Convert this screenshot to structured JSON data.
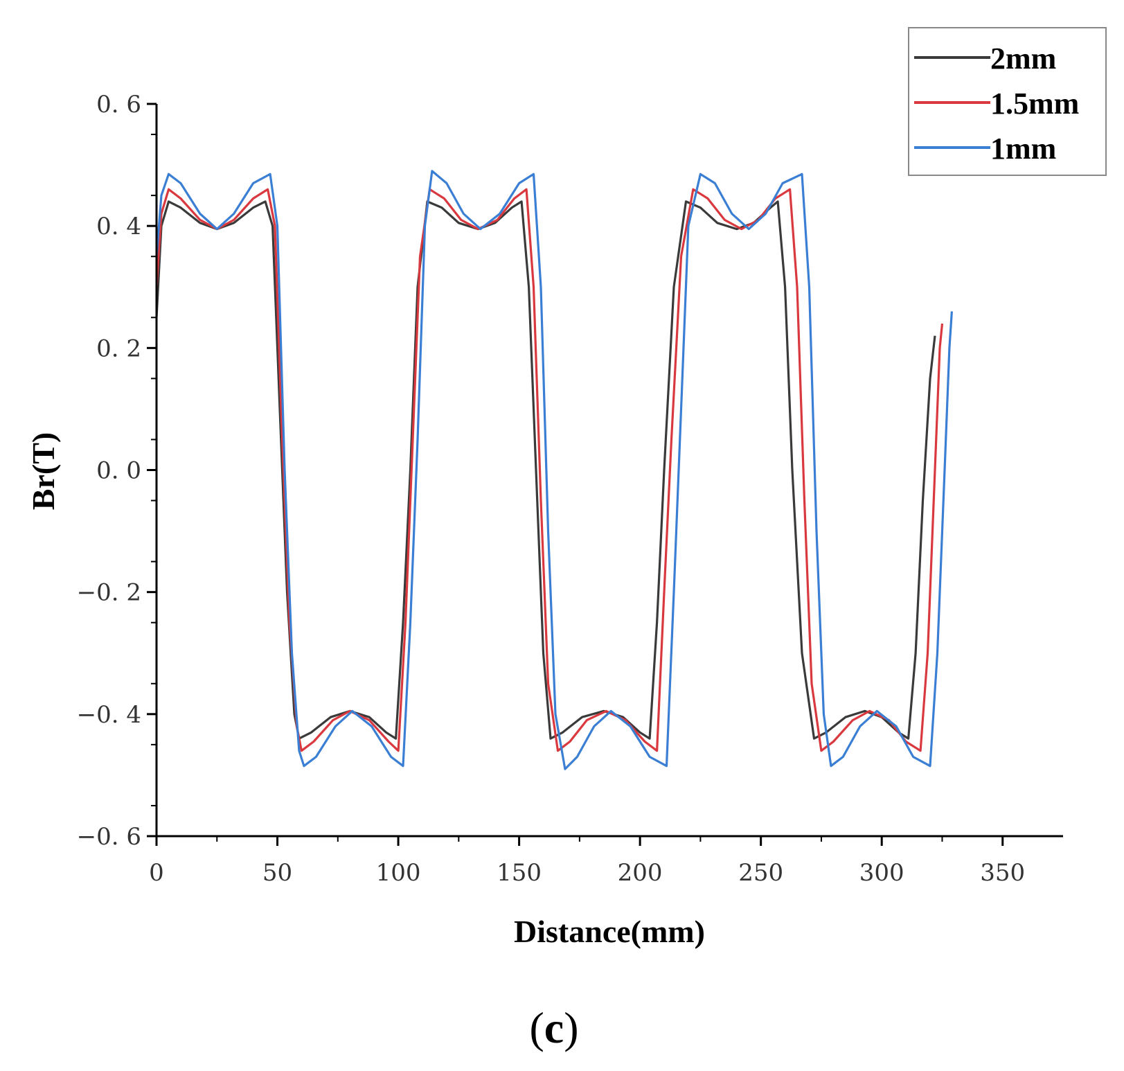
{
  "chart_data": {
    "type": "line",
    "title": "",
    "xlabel": "Distance(mm)",
    "ylabel": "Br(T)",
    "xlim": [
      0,
      375
    ],
    "ylim": [
      -0.6,
      0.6
    ],
    "x_ticks": [
      0,
      50,
      100,
      150,
      200,
      250,
      300,
      350
    ],
    "x_tick_labels": [
      "0",
      "50",
      "100",
      "150",
      "200",
      "250",
      "300",
      "350"
    ],
    "y_ticks": [
      0.6,
      0.4,
      0.2,
      0.0,
      -0.2,
      -0.4,
      -0.6
    ],
    "y_tick_labels": [
      "0. 6",
      "0. 4",
      "0. 2",
      "0. 0",
      "−0. 2",
      "−0. 4",
      "−0. 6"
    ],
    "legend_position": "top-right",
    "series": [
      {
        "name": "2mm",
        "color": "#3a3a3a",
        "points": [
          [
            0,
            0.25
          ],
          [
            2,
            0.4
          ],
          [
            5,
            0.44
          ],
          [
            10,
            0.43
          ],
          [
            18,
            0.405
          ],
          [
            25,
            0.395
          ],
          [
            32,
            0.405
          ],
          [
            40,
            0.43
          ],
          [
            45,
            0.44
          ],
          [
            48,
            0.4
          ],
          [
            51,
            0.1
          ],
          [
            54,
            -0.2
          ],
          [
            57,
            -0.4
          ],
          [
            59,
            -0.44
          ],
          [
            64,
            -0.43
          ],
          [
            72,
            -0.405
          ],
          [
            80,
            -0.395
          ],
          [
            88,
            -0.405
          ],
          [
            95,
            -0.43
          ],
          [
            99,
            -0.44
          ],
          [
            102,
            -0.25
          ],
          [
            105,
            0.0
          ],
          [
            108,
            0.3
          ],
          [
            112,
            0.44
          ],
          [
            118,
            0.43
          ],
          [
            125,
            0.405
          ],
          [
            133,
            0.395
          ],
          [
            140,
            0.405
          ],
          [
            147,
            0.43
          ],
          [
            151,
            0.44
          ],
          [
            154,
            0.3
          ],
          [
            157,
            0.0
          ],
          [
            160,
            -0.3
          ],
          [
            163,
            -0.44
          ],
          [
            168,
            -0.43
          ],
          [
            176,
            -0.405
          ],
          [
            185,
            -0.395
          ],
          [
            193,
            -0.405
          ],
          [
            200,
            -0.43
          ],
          [
            204,
            -0.44
          ],
          [
            207,
            -0.25
          ],
          [
            210,
            0.0
          ],
          [
            214,
            0.3
          ],
          [
            219,
            0.44
          ],
          [
            225,
            0.43
          ],
          [
            232,
            0.405
          ],
          [
            240,
            0.395
          ],
          [
            247,
            0.405
          ],
          [
            254,
            0.43
          ],
          [
            257,
            0.44
          ],
          [
            260,
            0.3
          ],
          [
            263,
            0.0
          ],
          [
            267,
            -0.3
          ],
          [
            272,
            -0.44
          ],
          [
            277,
            -0.43
          ],
          [
            285,
            -0.405
          ],
          [
            293,
            -0.395
          ],
          [
            300,
            -0.405
          ],
          [
            307,
            -0.43
          ],
          [
            311,
            -0.44
          ],
          [
            314,
            -0.3
          ],
          [
            317,
            -0.05
          ],
          [
            320,
            0.15
          ],
          [
            322,
            0.22
          ]
        ]
      },
      {
        "name": "1.5mm",
        "color": "#d9393e",
        "points": [
          [
            0,
            0.3
          ],
          [
            2,
            0.42
          ],
          [
            5,
            0.46
          ],
          [
            10,
            0.445
          ],
          [
            18,
            0.41
          ],
          [
            25,
            0.395
          ],
          [
            32,
            0.41
          ],
          [
            40,
            0.445
          ],
          [
            46,
            0.46
          ],
          [
            49,
            0.4
          ],
          [
            52,
            0.05
          ],
          [
            55,
            -0.25
          ],
          [
            58,
            -0.42
          ],
          [
            60,
            -0.46
          ],
          [
            65,
            -0.445
          ],
          [
            73,
            -0.41
          ],
          [
            80,
            -0.395
          ],
          [
            88,
            -0.41
          ],
          [
            96,
            -0.445
          ],
          [
            100,
            -0.46
          ],
          [
            103,
            -0.25
          ],
          [
            106,
            0.05
          ],
          [
            109,
            0.35
          ],
          [
            113,
            0.46
          ],
          [
            119,
            0.445
          ],
          [
            126,
            0.41
          ],
          [
            133,
            0.395
          ],
          [
            141,
            0.41
          ],
          [
            148,
            0.445
          ],
          [
            153,
            0.46
          ],
          [
            156,
            0.3
          ],
          [
            159,
            -0.05
          ],
          [
            162,
            -0.35
          ],
          [
            166,
            -0.46
          ],
          [
            171,
            -0.445
          ],
          [
            178,
            -0.41
          ],
          [
            186,
            -0.395
          ],
          [
            194,
            -0.41
          ],
          [
            202,
            -0.445
          ],
          [
            207,
            -0.46
          ],
          [
            210,
            -0.2
          ],
          [
            213,
            0.05
          ],
          [
            217,
            0.35
          ],
          [
            222,
            0.46
          ],
          [
            228,
            0.445
          ],
          [
            235,
            0.41
          ],
          [
            242,
            0.395
          ],
          [
            249,
            0.41
          ],
          [
            256,
            0.445
          ],
          [
            262,
            0.46
          ],
          [
            265,
            0.3
          ],
          [
            268,
            -0.05
          ],
          [
            271,
            -0.35
          ],
          [
            275,
            -0.46
          ],
          [
            280,
            -0.445
          ],
          [
            288,
            -0.41
          ],
          [
            295,
            -0.395
          ],
          [
            303,
            -0.41
          ],
          [
            310,
            -0.445
          ],
          [
            316,
            -0.46
          ],
          [
            319,
            -0.3
          ],
          [
            322,
            0.0
          ],
          [
            324,
            0.2
          ],
          [
            325,
            0.24
          ]
        ]
      },
      {
        "name": "1mm",
        "color": "#3a7fd4",
        "points": [
          [
            0,
            0.35
          ],
          [
            2,
            0.45
          ],
          [
            5,
            0.485
          ],
          [
            10,
            0.47
          ],
          [
            18,
            0.42
          ],
          [
            25,
            0.395
          ],
          [
            32,
            0.42
          ],
          [
            40,
            0.47
          ],
          [
            47,
            0.485
          ],
          [
            50,
            0.4
          ],
          [
            53,
            0.0
          ],
          [
            56,
            -0.3
          ],
          [
            59,
            -0.46
          ],
          [
            61,
            -0.485
          ],
          [
            66,
            -0.47
          ],
          [
            74,
            -0.42
          ],
          [
            81,
            -0.395
          ],
          [
            89,
            -0.42
          ],
          [
            97,
            -0.47
          ],
          [
            102,
            -0.485
          ],
          [
            105,
            -0.25
          ],
          [
            108,
            0.05
          ],
          [
            111,
            0.4
          ],
          [
            114,
            0.49
          ],
          [
            120,
            0.47
          ],
          [
            127,
            0.42
          ],
          [
            134,
            0.395
          ],
          [
            142,
            0.42
          ],
          [
            150,
            0.47
          ],
          [
            156,
            0.485
          ],
          [
            159,
            0.3
          ],
          [
            162,
            -0.1
          ],
          [
            165,
            -0.4
          ],
          [
            169,
            -0.49
          ],
          [
            174,
            -0.47
          ],
          [
            181,
            -0.42
          ],
          [
            188,
            -0.395
          ],
          [
            196,
            -0.42
          ],
          [
            204,
            -0.47
          ],
          [
            211,
            -0.485
          ],
          [
            214,
            -0.2
          ],
          [
            217,
            0.1
          ],
          [
            220,
            0.4
          ],
          [
            225,
            0.485
          ],
          [
            231,
            0.47
          ],
          [
            238,
            0.42
          ],
          [
            245,
            0.395
          ],
          [
            252,
            0.42
          ],
          [
            259,
            0.47
          ],
          [
            267,
            0.485
          ],
          [
            270,
            0.3
          ],
          [
            273,
            -0.1
          ],
          [
            276,
            -0.4
          ],
          [
            279,
            -0.485
          ],
          [
            284,
            -0.47
          ],
          [
            291,
            -0.42
          ],
          [
            298,
            -0.395
          ],
          [
            306,
            -0.42
          ],
          [
            313,
            -0.47
          ],
          [
            320,
            -0.485
          ],
          [
            323,
            -0.3
          ],
          [
            326,
            0.0
          ],
          [
            328,
            0.2
          ],
          [
            329,
            0.26
          ]
        ]
      }
    ],
    "caption": "(c)",
    "caption_letter": "c",
    "caption_open": "(",
    "caption_close": ")"
  }
}
